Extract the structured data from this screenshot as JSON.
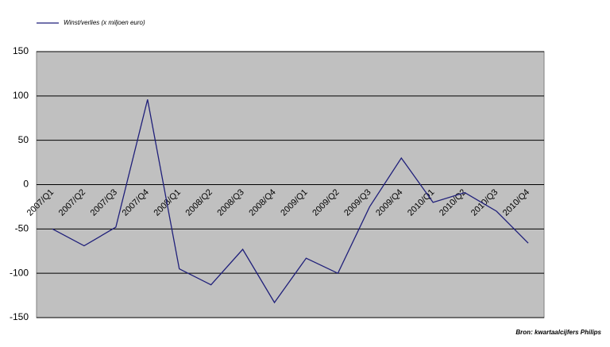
{
  "chart_data": {
    "type": "line",
    "categories": [
      "2007/Q1",
      "2007/Q2",
      "2007/Q3",
      "2007/Q4",
      "2008/Q1",
      "2008/Q2",
      "2008/Q3",
      "2008/Q4",
      "2009/Q1",
      "2009/Q2",
      "2009/Q3",
      "2009/Q4",
      "2010/Q1",
      "2010/Q2",
      "2010/Q3",
      "2010/Q4"
    ],
    "series": [
      {
        "name": "Winst/verlies (x miljoen euro)",
        "color": "#1f1f7a",
        "values": [
          -50,
          -69,
          -48,
          96,
          -95,
          -113,
          -73,
          -133,
          -83,
          -100,
          -25,
          30,
          -20,
          -9,
          -30,
          -66
        ]
      }
    ],
    "ylim": [
      -150,
      150
    ],
    "yticks": [
      150,
      100,
      50,
      0,
      -50,
      -100,
      -150
    ],
    "grid": true,
    "legend": "top-left",
    "source": "Bron: kwartaalcijfers Philips"
  }
}
